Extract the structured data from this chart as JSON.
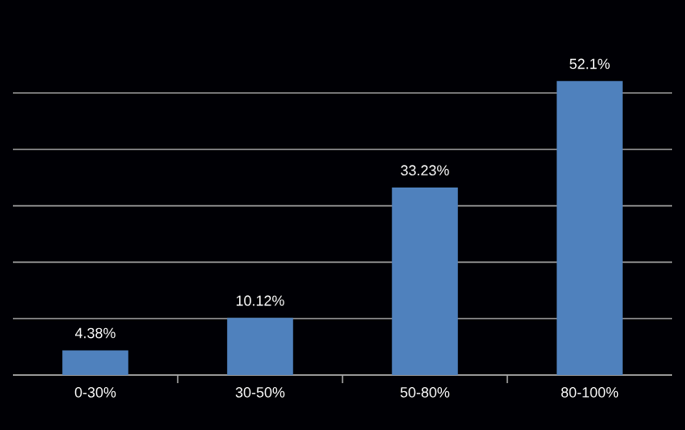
{
  "chart_data": {
    "type": "bar",
    "categories": [
      "0-30%",
      "30-50%",
      "50-80%",
      "80-100%"
    ],
    "values": [
      4.38,
      10.12,
      33.23,
      52.1
    ],
    "value_labels": [
      "4.38%",
      "10.12%",
      "33.23%",
      "52.1%"
    ],
    "color": "#4f81bd",
    "grid": "y",
    "tick_labels": "x"
  }
}
